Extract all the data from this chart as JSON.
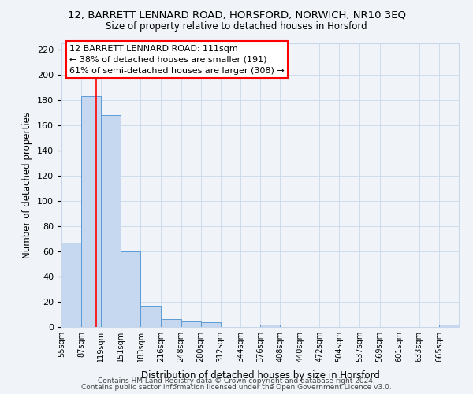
{
  "title_line1": "12, BARRETT LENNARD ROAD, HORSFORD, NORWICH, NR10 3EQ",
  "title_line2": "Size of property relative to detached houses in Horsford",
  "xlabel": "Distribution of detached houses by size in Horsford",
  "ylabel": "Number of detached properties",
  "bar_edges": [
    55,
    87,
    119,
    151,
    183,
    216,
    248,
    280,
    312,
    344,
    376,
    408,
    440,
    472,
    504,
    537,
    569,
    601,
    633,
    665,
    697
  ],
  "bar_heights": [
    67,
    183,
    168,
    60,
    17,
    6,
    5,
    4,
    0,
    0,
    2,
    0,
    0,
    0,
    0,
    0,
    0,
    0,
    0,
    2
  ],
  "bar_color": "#c5d8f0",
  "bar_edge_color": "#5b9bd5",
  "grid_color": "#c8d8ea",
  "property_line_x": 111,
  "annotation_line1": "12 BARRETT LENNARD ROAD: 111sqm",
  "annotation_line2": "← 38% of detached houses are smaller (191)",
  "annotation_line3": "61% of semi-detached houses are larger (308) →",
  "ylim": [
    0,
    225
  ],
  "yticks": [
    0,
    20,
    40,
    60,
    80,
    100,
    120,
    140,
    160,
    180,
    200,
    220
  ],
  "footer_line1": "Contains HM Land Registry data © Crown copyright and database right 2024.",
  "footer_line2": "Contains public sector information licensed under the Open Government Licence v3.0.",
  "bg_color": "#f0f4f8"
}
